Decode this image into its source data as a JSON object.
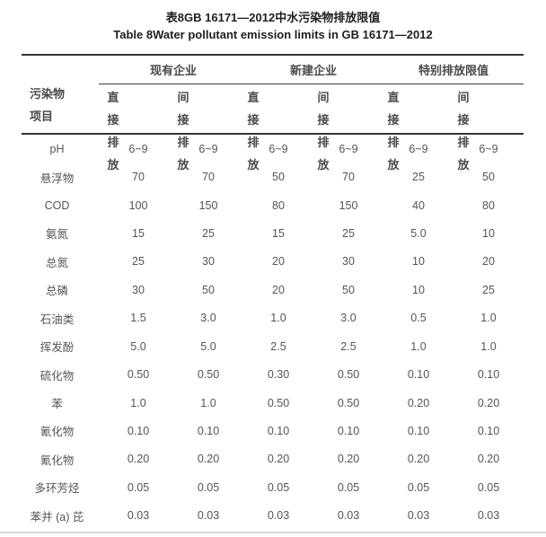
{
  "title_zh": "表8GB 16171—2012中水污染物排放限值",
  "title_en": "Table 8Water pollutant emission limits in GB 16171—2012",
  "colors": {
    "rule_dark": "#343434",
    "rule_light": "#d6dade",
    "body_text": "#555555",
    "header_text": "#4a4a4a",
    "title_text": "#1e1e1e",
    "background": "#ffffff"
  },
  "table": {
    "row_header": {
      "line1": "污染物",
      "line2": "项目"
    },
    "groups": [
      {
        "label": "现有企业"
      },
      {
        "label": "新建企业"
      },
      {
        "label": "特别排放限值"
      }
    ],
    "sub_columns": [
      {
        "line1": "直接",
        "line2": "排放"
      },
      {
        "line1": "间接",
        "line2": "排放"
      },
      {
        "line1": "直接",
        "line2": "排放"
      },
      {
        "line1": "间接",
        "line2": "排放"
      },
      {
        "line1": "直接",
        "line2": "排放"
      },
      {
        "line1": "间接",
        "line2": "排放"
      }
    ],
    "rows": [
      {
        "name": "pH",
        "values": [
          "6~9",
          "6~9",
          "6~9",
          "6~9",
          "6~9",
          "6~9"
        ]
      },
      {
        "name": "悬浮物",
        "values": [
          "70",
          "70",
          "50",
          "70",
          "25",
          "50"
        ]
      },
      {
        "name": "COD",
        "values": [
          "100",
          "150",
          "80",
          "150",
          "40",
          "80"
        ]
      },
      {
        "name": "氨氮",
        "values": [
          "15",
          "25",
          "15",
          "25",
          "5.0",
          "10"
        ]
      },
      {
        "name": "总氮",
        "values": [
          "25",
          "30",
          "20",
          "30",
          "10",
          "20"
        ]
      },
      {
        "name": "总磷",
        "values": [
          "30",
          "50",
          "20",
          "50",
          "10",
          "25"
        ]
      },
      {
        "name": "石油类",
        "values": [
          "1.5",
          "3.0",
          "1.0",
          "3.0",
          "0.5",
          "1.0"
        ]
      },
      {
        "name": "挥发酚",
        "values": [
          "5.0",
          "5.0",
          "2.5",
          "2.5",
          "1.0",
          "1.0"
        ]
      },
      {
        "name": "硫化物",
        "values": [
          "0.50",
          "0.50",
          "0.30",
          "0.50",
          "0.10",
          "0.10"
        ]
      },
      {
        "name": "苯",
        "values": [
          "1.0",
          "1.0",
          "0.50",
          "0.50",
          "0.20",
          "0.20"
        ]
      },
      {
        "name": "氰化物",
        "values": [
          "0.10",
          "0.10",
          "0.10",
          "0.10",
          "0.10",
          "0.10"
        ]
      },
      {
        "name": "氰化物",
        "values": [
          "0.20",
          "0.20",
          "0.20",
          "0.20",
          "0.20",
          "0.20"
        ]
      },
      {
        "name": "多环芳烃",
        "values": [
          "0.05",
          "0.05",
          "0.05",
          "0.05",
          "0.05",
          "0.05"
        ]
      },
      {
        "name": "苯并 (a) 芘",
        "values": [
          "0.03",
          "0.03",
          "0.03",
          "0.03",
          "0.03",
          "0.03"
        ]
      }
    ]
  }
}
